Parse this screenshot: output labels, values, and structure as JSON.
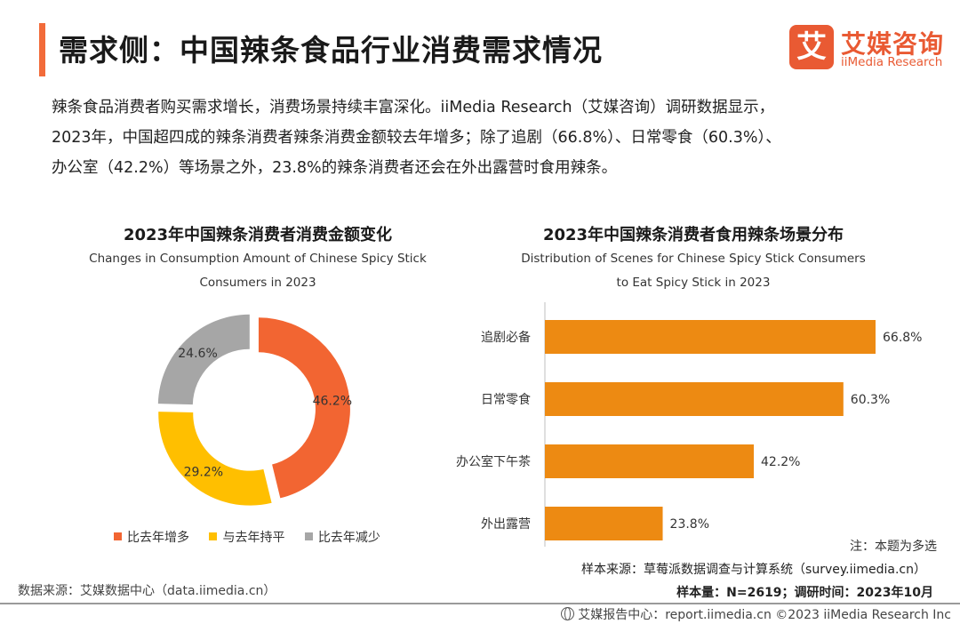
{
  "header": {
    "title": "需求侧：中国辣条食品行业消费需求情况",
    "brand": {
      "mark": "艾",
      "name_cn": "艾媒咨询",
      "name_en": "iiMedia Research",
      "color": "#e95a33"
    }
  },
  "intro": {
    "line1": "辣条食品消费者购买需求增长，消费场景持续丰富深化。iiMedia Research（艾媒咨询）调研数据显示，",
    "line2": "2023年，中国超四成的辣条消费者辣条消费金额较去年增多；除了追剧（66.8%）、日常零食（60.3%）、",
    "line3": "办公室（42.2%）等场景之外，23.8%的辣条消费者还会在外出露营时食用辣条。"
  },
  "chart_data": [
    {
      "type": "pie",
      "title": "2023年中国辣条消费者消费金额变化",
      "subtitle_line1": "Changes in Consumption Amount of Chinese Spicy Stick",
      "subtitle_line2": "Consumers in 2023",
      "categories": [
        "比去年增多",
        "与去年持平",
        "比去年减少"
      ],
      "values": [
        46.2,
        29.2,
        24.6
      ],
      "labels": [
        "46.2%",
        "29.2%",
        "24.6%"
      ],
      "colors": [
        "#f26532",
        "#ffbf00",
        "#a6a6a6"
      ],
      "legend_position": "bottom"
    },
    {
      "type": "bar",
      "orientation": "horizontal",
      "title": "2023年中国辣条消费者食用辣条场景分布",
      "subtitle_line1": "Distribution of Scenes for Chinese Spicy Stick Consumers",
      "subtitle_line2": "to Eat Spicy Stick in 2023",
      "categories": [
        "追剧必备",
        "日常零食",
        "办公室下午茶",
        "外出露营"
      ],
      "values": [
        66.8,
        60.3,
        42.2,
        23.8
      ],
      "labels": [
        "66.8%",
        "60.3%",
        "42.2%",
        "23.8%"
      ],
      "xlim": [
        0,
        70
      ],
      "color": "#ed8a12"
    }
  ],
  "notes": {
    "note": "注：本题为多选",
    "sample_source": "样本来源：草莓派数据调查与计算系统（survey.iimedia.cn）",
    "sample_size": "样本量：N=2619；调研时间：2023年10月",
    "data_source": "数据来源：艾媒数据中心（data.iimedia.cn）"
  },
  "footer": {
    "text": "艾媒报告中心：report.iimedia.cn  ©2023  iiMedia Research  Inc"
  }
}
